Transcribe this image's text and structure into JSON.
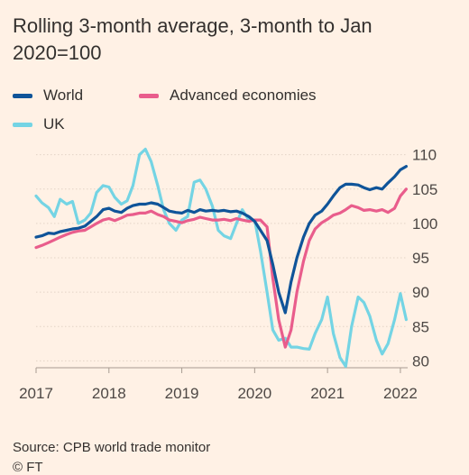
{
  "chart_data": {
    "type": "line",
    "title": "Rolling 3-month average, 3-month to Jan 2020=100",
    "xlabel": "",
    "ylabel": "",
    "xlim": [
      2017.0,
      2022.1
    ],
    "ylim": [
      79,
      111
    ],
    "x_ticks": [
      "2017",
      "2018",
      "2019",
      "2020",
      "2021",
      "2022"
    ],
    "y_ticks": [
      "80",
      "85",
      "90",
      "95",
      "100",
      "105",
      "110"
    ],
    "grid": "horizontal",
    "legend_position": "top-left",
    "colors": {
      "World": "#0f5499",
      "Advanced economies": "#e95d8c",
      "UK": "#74d4e4"
    },
    "series": [
      {
        "name": "World",
        "x": [
          2017.0,
          2017.08,
          2017.17,
          2017.25,
          2017.33,
          2017.42,
          2017.5,
          2017.58,
          2017.67,
          2017.75,
          2017.83,
          2017.92,
          2018.0,
          2018.08,
          2018.17,
          2018.25,
          2018.33,
          2018.42,
          2018.5,
          2018.58,
          2018.67,
          2018.75,
          2018.83,
          2018.92,
          2019.0,
          2019.08,
          2019.17,
          2019.25,
          2019.33,
          2019.42,
          2019.5,
          2019.58,
          2019.67,
          2019.75,
          2019.83,
          2019.92,
          2020.0,
          2020.08,
          2020.17,
          2020.25,
          2020.33,
          2020.42,
          2020.5,
          2020.58,
          2020.67,
          2020.75,
          2020.83,
          2020.92,
          2021.0,
          2021.08,
          2021.17,
          2021.25,
          2021.33,
          2021.42,
          2021.5,
          2021.58,
          2021.67,
          2021.75,
          2021.83,
          2021.92,
          2022.0,
          2022.08
        ],
        "values": [
          98.0,
          98.2,
          98.6,
          98.5,
          98.8,
          99.0,
          99.2,
          99.3,
          99.6,
          100.3,
          101.0,
          102.0,
          102.2,
          101.8,
          101.6,
          102.2,
          102.6,
          102.8,
          102.8,
          103.0,
          102.8,
          102.3,
          101.8,
          101.6,
          101.5,
          101.9,
          101.6,
          102.0,
          101.8,
          101.9,
          101.8,
          101.9,
          101.7,
          101.8,
          101.5,
          101.0,
          100.3,
          99.0,
          97.5,
          94.0,
          90.0,
          87.0,
          91.5,
          95.0,
          98.0,
          100.0,
          101.2,
          101.8,
          102.8,
          104.0,
          105.2,
          105.7,
          105.7,
          105.6,
          105.2,
          104.9,
          105.2,
          105.0,
          105.9,
          106.8,
          107.8,
          108.3
        ]
      },
      {
        "name": "Advanced economies",
        "x": [
          2017.0,
          2017.08,
          2017.17,
          2017.25,
          2017.33,
          2017.42,
          2017.5,
          2017.58,
          2017.67,
          2017.75,
          2017.83,
          2017.92,
          2018.0,
          2018.08,
          2018.17,
          2018.25,
          2018.33,
          2018.42,
          2018.5,
          2018.58,
          2018.67,
          2018.75,
          2018.83,
          2018.92,
          2019.0,
          2019.08,
          2019.17,
          2019.25,
          2019.33,
          2019.42,
          2019.5,
          2019.58,
          2019.67,
          2019.75,
          2019.83,
          2019.92,
          2020.0,
          2020.08,
          2020.17,
          2020.25,
          2020.33,
          2020.42,
          2020.5,
          2020.58,
          2020.67,
          2020.75,
          2020.83,
          2020.92,
          2021.0,
          2021.08,
          2021.17,
          2021.25,
          2021.33,
          2021.42,
          2021.5,
          2021.58,
          2021.67,
          2021.75,
          2021.83,
          2021.92,
          2022.0,
          2022.08
        ],
        "values": [
          96.5,
          96.8,
          97.2,
          97.6,
          98.0,
          98.4,
          98.7,
          98.9,
          99.0,
          99.5,
          100.0,
          100.5,
          100.7,
          100.4,
          100.8,
          101.2,
          101.3,
          101.5,
          101.5,
          101.8,
          101.3,
          101.0,
          100.5,
          100.3,
          100.1,
          100.4,
          100.6,
          100.9,
          100.7,
          100.5,
          100.5,
          100.6,
          100.4,
          100.7,
          100.5,
          100.3,
          100.5,
          100.5,
          99.5,
          92.0,
          86.0,
          82.0,
          84.5,
          90.0,
          94.5,
          97.5,
          99.2,
          100.1,
          100.6,
          101.2,
          101.5,
          102.0,
          102.6,
          102.3,
          101.9,
          102.0,
          101.8,
          102.0,
          101.6,
          102.2,
          104.0,
          105.0
        ]
      },
      {
        "name": "UK",
        "x": [
          2017.0,
          2017.08,
          2017.17,
          2017.25,
          2017.33,
          2017.42,
          2017.5,
          2017.58,
          2017.67,
          2017.75,
          2017.83,
          2017.92,
          2018.0,
          2018.08,
          2018.17,
          2018.25,
          2018.33,
          2018.42,
          2018.5,
          2018.58,
          2018.67,
          2018.75,
          2018.83,
          2018.92,
          2019.0,
          2019.08,
          2019.17,
          2019.25,
          2019.33,
          2019.42,
          2019.5,
          2019.58,
          2019.67,
          2019.75,
          2019.83,
          2019.92,
          2020.0,
          2020.08,
          2020.17,
          2020.25,
          2020.33,
          2020.42,
          2020.5,
          2020.58,
          2020.67,
          2020.75,
          2020.83,
          2020.92,
          2021.0,
          2021.08,
          2021.17,
          2021.25,
          2021.33,
          2021.42,
          2021.5,
          2021.58,
          2021.67,
          2021.75,
          2021.83,
          2021.92,
          2022.0,
          2022.08
        ],
        "values": [
          104.0,
          103.0,
          102.3,
          101.0,
          103.5,
          102.8,
          103.2,
          100.0,
          100.5,
          101.5,
          104.5,
          105.5,
          105.3,
          103.8,
          102.8,
          103.3,
          105.5,
          110.0,
          110.8,
          109.0,
          105.5,
          102.0,
          100.0,
          99.0,
          100.5,
          101.0,
          106.0,
          106.3,
          105.0,
          102.5,
          99.0,
          98.2,
          97.8,
          100.0,
          102.0,
          100.5,
          100.5,
          96.0,
          90.0,
          84.5,
          83.0,
          83.3,
          82.0,
          82.0,
          81.8,
          81.7,
          84.0,
          86.0,
          89.3,
          84.0,
          80.5,
          79.2,
          85.0,
          89.3,
          88.5,
          86.5,
          83.0,
          81.0,
          82.5,
          86.0,
          89.8,
          86.0
        ]
      }
    ]
  },
  "footer": {
    "source": "Source: CPB world trade monitor",
    "credit": "© FT"
  }
}
